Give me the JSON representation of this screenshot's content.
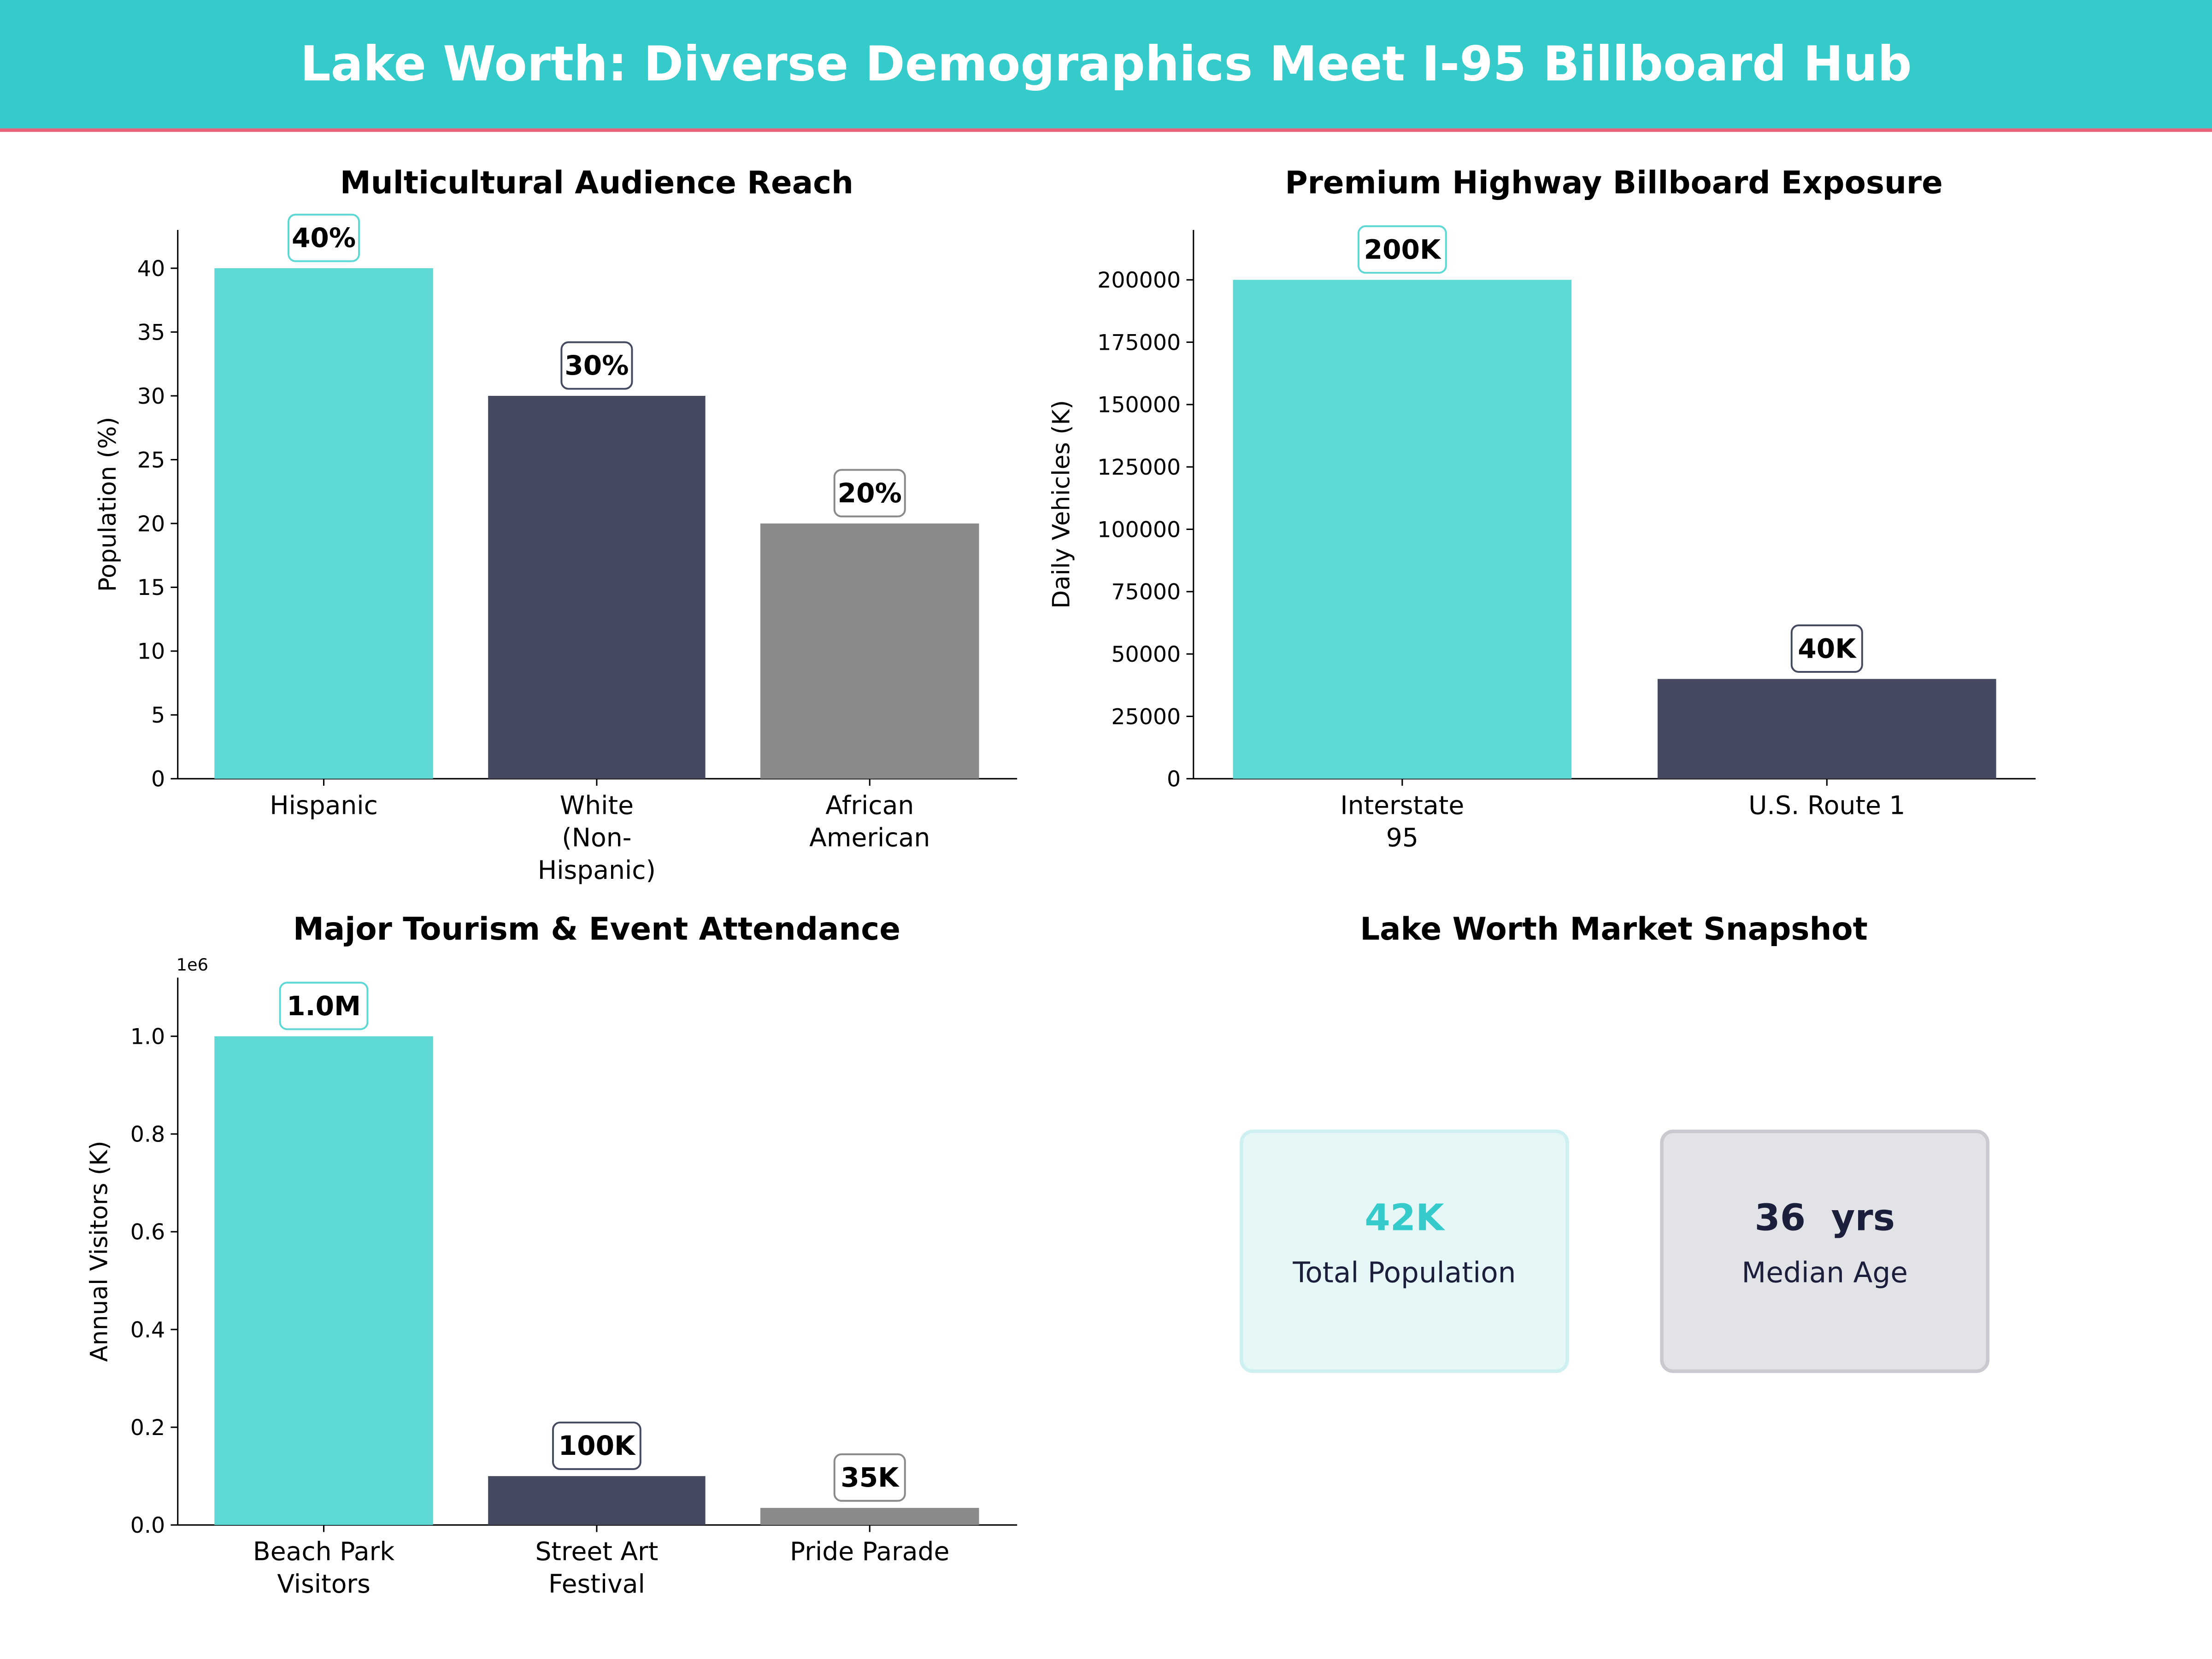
{
  "header": {
    "title": "Lake Worth: Diverse Demographics Meet I-95 Billboard Hub"
  },
  "colors": {
    "header_bg": "#35CBCB",
    "header_rule": "#E8637A",
    "teal": "#5DD8D5",
    "navy": "#464A60",
    "gray": "#8A8A8A"
  },
  "chart_data": [
    {
      "type": "bar",
      "title": "Multicultural Audience Reach",
      "ylabel": "Population (%)",
      "categories": [
        "Hispanic",
        "White\n(Non-\nHispanic)",
        "African\nAmerican"
      ],
      "values": [
        40,
        30,
        20
      ],
      "data_labels": [
        "40%",
        "30%",
        "20%"
      ],
      "colors": [
        "#5DD8D5",
        "#464A60",
        "#8A8A8A"
      ],
      "ylim": [
        0,
        43
      ],
      "yticks": [
        0,
        5,
        10,
        15,
        20,
        25,
        30,
        35,
        40
      ],
      "ytick_labels": [
        "0",
        "5",
        "10",
        "15",
        "20",
        "25",
        "30",
        "35",
        "40"
      ],
      "grid": false
    },
    {
      "type": "bar",
      "title": "Premium Highway Billboard Exposure",
      "ylabel": "Daily Vehicles (K)",
      "categories": [
        "Interstate\n95",
        "U.S. Route 1"
      ],
      "values": [
        200000,
        40000
      ],
      "data_labels": [
        "200K",
        "40K"
      ],
      "colors": [
        "#5DD8D5",
        "#464A60"
      ],
      "ylim": [
        0,
        220000
      ],
      "yticks": [
        0,
        25000,
        50000,
        75000,
        100000,
        125000,
        150000,
        175000,
        200000
      ],
      "ytick_labels": [
        "0",
        "25000",
        "50000",
        "75000",
        "100000",
        "125000",
        "150000",
        "175000",
        "200000"
      ],
      "grid": false
    },
    {
      "type": "bar",
      "title": "Major Tourism & Event Attendance",
      "ylabel": "Annual Visitors (K)",
      "offset_label": "1e6",
      "categories": [
        "Beach Park\nVisitors",
        "Street Art\nFestival",
        "Pride Parade"
      ],
      "values": [
        1000000,
        100000,
        35000
      ],
      "data_labels": [
        "1.0M",
        "100K",
        "35K"
      ],
      "colors": [
        "#5DD8D5",
        "#464A60",
        "#8A8A8A"
      ],
      "ylim": [
        0,
        1120000
      ],
      "yticks": [
        0,
        200000,
        400000,
        600000,
        800000,
        1000000
      ],
      "ytick_labels": [
        "0.0",
        "0.2",
        "0.4",
        "0.6",
        "0.8",
        "1.0"
      ],
      "grid": false
    }
  ],
  "snapshot": {
    "title": "Lake Worth Market Snapshot",
    "cards": [
      {
        "value": "42K",
        "label": "Total Population",
        "value_color": "#35CBCB",
        "bg": "#E6F7F7",
        "border": "#CFF0F0"
      },
      {
        "value": "36  yrs",
        "label": "Median Age",
        "value_color": "#1B1F3B",
        "bg": "#E2E3E7",
        "border": "#C9CAD0"
      }
    ]
  }
}
